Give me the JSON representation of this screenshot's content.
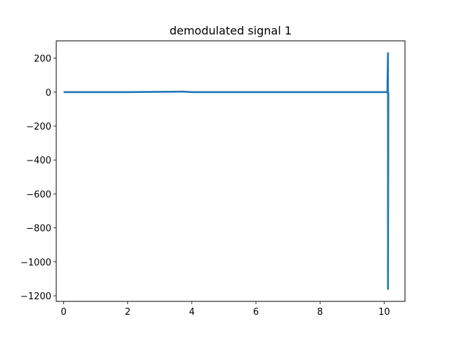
{
  "chart_data": {
    "type": "line",
    "title": "demodulated signal 1",
    "xlabel": "",
    "ylabel": "",
    "xlim": [
      -0.23,
      10.65
    ],
    "ylim": [
      -1233,
      302
    ],
    "xticks": [
      0,
      2,
      4,
      6,
      8,
      10
    ],
    "yticks": [
      200,
      0,
      -200,
      -400,
      -600,
      -800,
      -1000,
      -1200
    ],
    "xtick_labels": [
      "0",
      "2",
      "4",
      "6",
      "8",
      "10"
    ],
    "ytick_labels": [
      "200",
      "0",
      "−200",
      "−400",
      "−600",
      "−800",
      "−1000",
      "−1200"
    ],
    "grid": false,
    "legend": "none",
    "series": [
      {
        "color": "#1f77b4",
        "x": [
          0,
          2,
          3.7,
          4,
          6,
          8,
          10.1,
          10.12,
          10.12,
          10.13
        ],
        "y": [
          0,
          0,
          3,
          0,
          0,
          0,
          0,
          230,
          -1160,
          0
        ]
      }
    ]
  }
}
